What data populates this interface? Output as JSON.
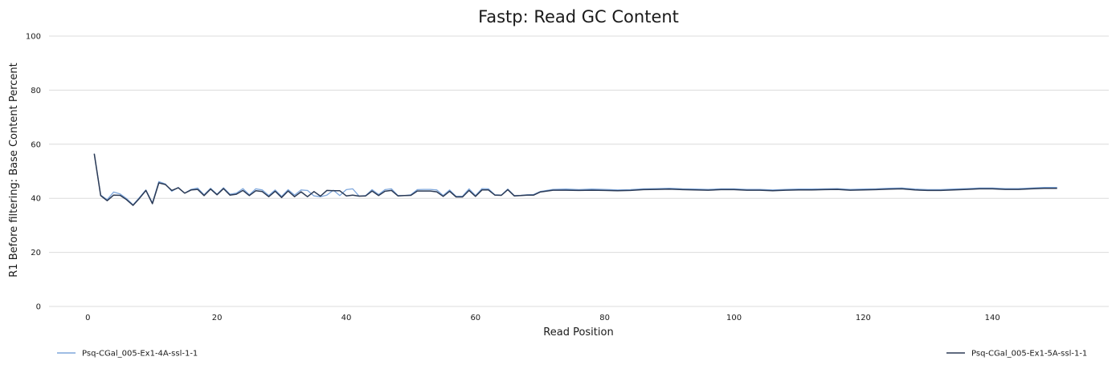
{
  "chart_data": {
    "type": "line",
    "title": "Fastp: Read GC Content",
    "xlabel": "Read Position",
    "ylabel": "R1 Before filtering: Base Content Percent",
    "xlim": [
      -6,
      158
    ],
    "ylim": [
      0,
      100
    ],
    "x_ticks": [
      0,
      20,
      40,
      60,
      80,
      100,
      120,
      140
    ],
    "y_ticks": [
      0,
      20,
      40,
      60,
      80,
      100
    ],
    "grid": true,
    "legend_placement": "bottom",
    "series": [
      {
        "name": "Psq-CGal_005-Ex1-4A-ssl-1-1",
        "color": "#7ea7dc",
        "x": [
          1,
          2,
          3,
          4,
          5,
          6,
          7,
          8,
          9,
          10,
          11,
          12,
          13,
          14,
          15,
          16,
          17,
          18,
          19,
          20,
          21,
          22,
          23,
          24,
          25,
          26,
          27,
          28,
          29,
          30,
          31,
          32,
          33,
          34,
          35,
          36,
          37,
          38,
          39,
          40,
          41,
          42,
          43,
          44,
          45,
          46,
          47,
          48,
          49,
          50,
          51,
          52,
          53,
          54,
          55,
          56,
          57,
          58,
          59,
          60,
          61,
          62,
          63,
          64,
          65,
          66,
          67,
          68,
          69,
          70,
          72,
          74,
          76,
          78,
          80,
          82,
          84,
          86,
          88,
          90,
          92,
          94,
          96,
          98,
          100,
          102,
          104,
          106,
          108,
          110,
          112,
          114,
          116,
          118,
          120,
          122,
          124,
          126,
          128,
          130,
          132,
          134,
          136,
          138,
          140,
          142,
          144,
          146,
          148,
          150
        ],
        "values": [
          56.5,
          41.2,
          39.5,
          42.3,
          41.6,
          39.9,
          37.6,
          40.3,
          43.1,
          38.3,
          46.2,
          45.3,
          42.6,
          44.0,
          41.9,
          43.3,
          43.8,
          41.3,
          43.7,
          41.5,
          43.9,
          41.5,
          41.9,
          43.6,
          41.3,
          43.5,
          43.1,
          41.0,
          43.1,
          40.7,
          43.2,
          41.2,
          43.1,
          42.9,
          40.9,
          40.6,
          41.2,
          43.0,
          41.0,
          43.2,
          43.5,
          40.8,
          41.0,
          43.2,
          41.4,
          43.2,
          43.5,
          41.0,
          41.0,
          41.3,
          43.2,
          43.3,
          43.3,
          43.1,
          41.0,
          43.1,
          40.7,
          40.8,
          43.5,
          41.0,
          43.6,
          43.5,
          41.3,
          41.2,
          43.4,
          41.0,
          41.1,
          41.3,
          41.4,
          42.5,
          43.3,
          43.4,
          43.2,
          43.4,
          43.3,
          43.1,
          43.2,
          43.5,
          43.6,
          43.7,
          43.5,
          43.4,
          43.3,
          43.5,
          43.5,
          43.3,
          43.3,
          43.1,
          43.3,
          43.4,
          43.4,
          43.5,
          43.6,
          43.3,
          43.4,
          43.5,
          43.7,
          43.8,
          43.4,
          43.2,
          43.2,
          43.4,
          43.6,
          43.8,
          43.8,
          43.6,
          43.6,
          43.8,
          44.0,
          44.0
        ]
      },
      {
        "name": "Psq-CGal_005-Ex1-5A-ssl-1-1",
        "color": "#2b3a55",
        "x": [
          1,
          2,
          3,
          4,
          5,
          6,
          7,
          8,
          9,
          10,
          11,
          12,
          13,
          14,
          15,
          16,
          17,
          18,
          19,
          20,
          21,
          22,
          23,
          24,
          25,
          26,
          27,
          28,
          29,
          30,
          31,
          32,
          33,
          34,
          35,
          36,
          37,
          38,
          39,
          40,
          41,
          42,
          43,
          44,
          45,
          46,
          47,
          48,
          49,
          50,
          51,
          52,
          53,
          54,
          55,
          56,
          57,
          58,
          59,
          60,
          61,
          62,
          63,
          64,
          65,
          66,
          67,
          68,
          69,
          70,
          72,
          74,
          76,
          78,
          80,
          82,
          84,
          86,
          88,
          90,
          92,
          94,
          96,
          98,
          100,
          102,
          104,
          106,
          108,
          110,
          112,
          114,
          116,
          118,
          120,
          122,
          124,
          126,
          128,
          130,
          132,
          134,
          136,
          138,
          140,
          142,
          144,
          146,
          148,
          150
        ],
        "values": [
          56.5,
          41.0,
          39.1,
          41.2,
          41.1,
          39.5,
          37.4,
          40.0,
          42.9,
          38.0,
          45.7,
          45.1,
          42.9,
          43.9,
          41.9,
          43.1,
          43.3,
          41.0,
          43.4,
          41.3,
          43.6,
          41.2,
          41.5,
          42.9,
          41.0,
          42.8,
          42.5,
          40.6,
          42.6,
          40.3,
          42.7,
          40.6,
          42.4,
          40.6,
          42.5,
          40.8,
          42.9,
          42.8,
          42.8,
          40.9,
          41.2,
          40.8,
          40.9,
          42.7,
          41.0,
          42.6,
          42.9,
          40.9,
          41.0,
          41.1,
          42.7,
          42.7,
          42.7,
          42.4,
          40.7,
          42.6,
          40.5,
          40.5,
          42.9,
          40.7,
          43.1,
          43.1,
          41.2,
          41.1,
          43.2,
          40.9,
          41.0,
          41.2,
          41.2,
          42.3,
          43.0,
          43.0,
          42.9,
          43.0,
          42.9,
          42.8,
          42.9,
          43.2,
          43.3,
          43.4,
          43.2,
          43.1,
          43.0,
          43.2,
          43.2,
          43.0,
          43.0,
          42.8,
          43.0,
          43.1,
          43.1,
          43.2,
          43.3,
          43.0,
          43.1,
          43.2,
          43.4,
          43.5,
          43.1,
          42.9,
          42.9,
          43.1,
          43.3,
          43.5,
          43.5,
          43.3,
          43.3,
          43.5,
          43.7,
          43.7
        ]
      }
    ]
  }
}
